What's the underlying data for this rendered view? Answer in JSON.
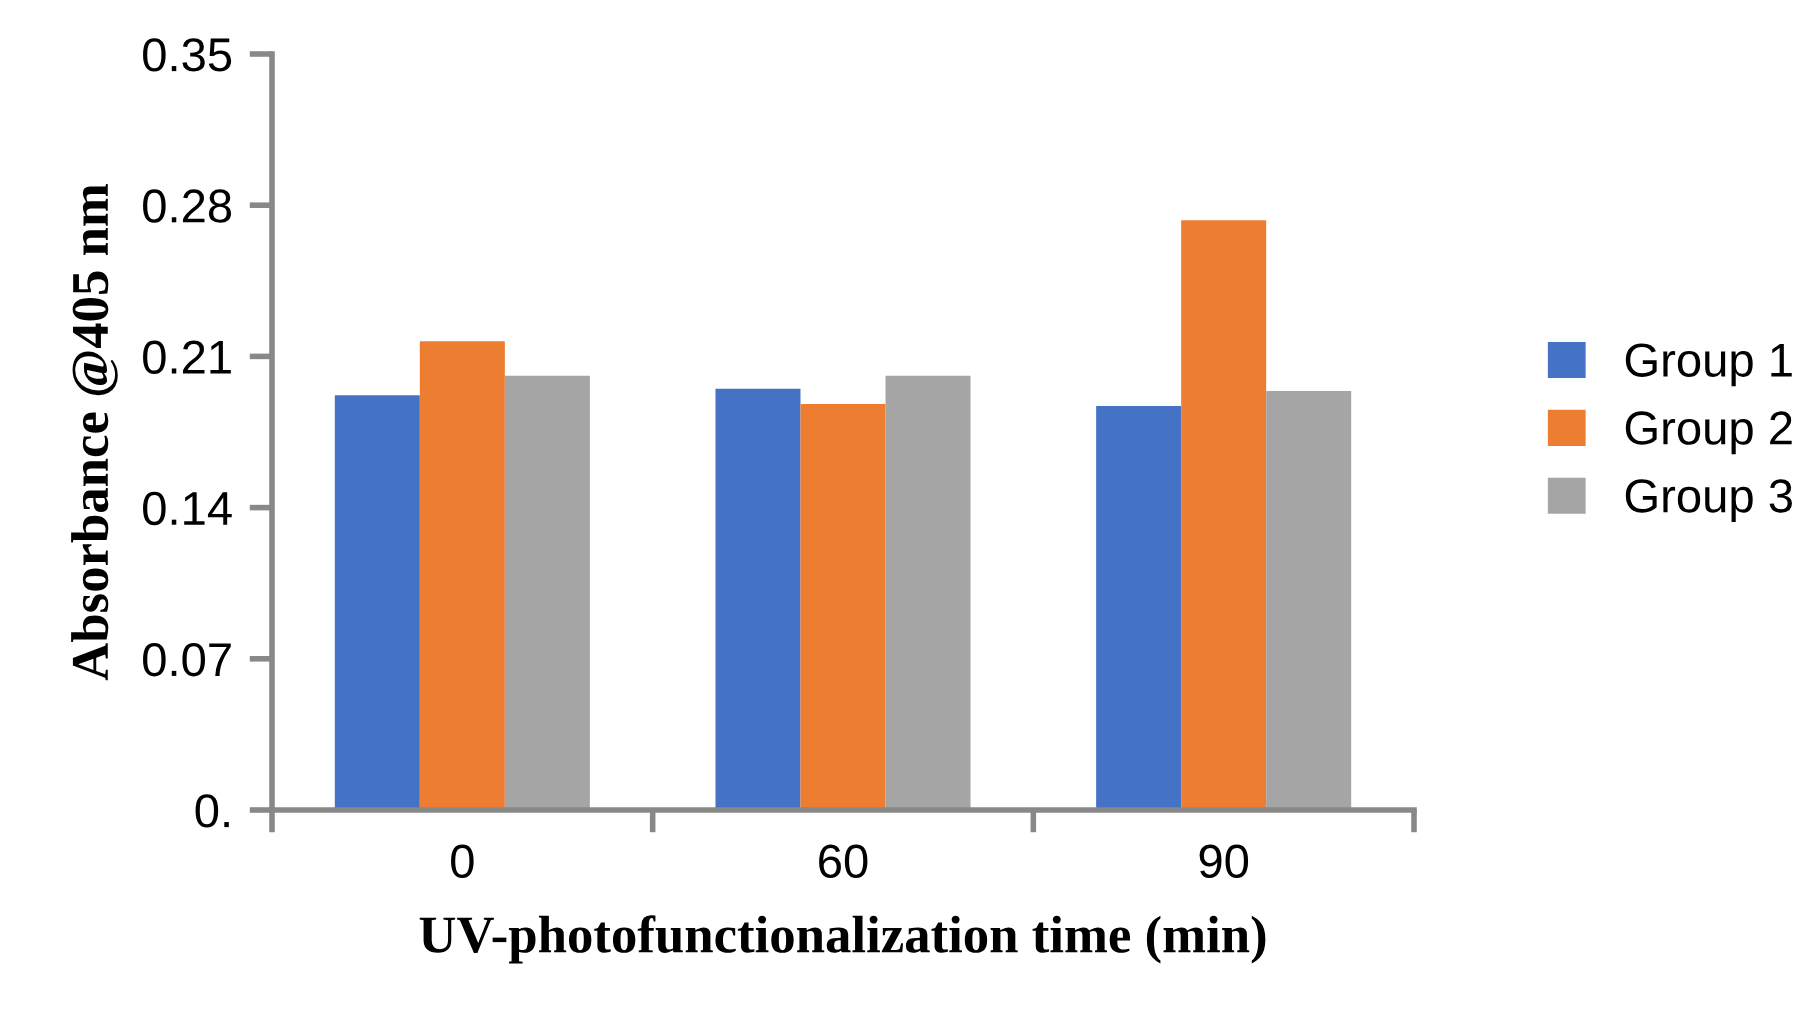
{
  "chart_data": {
    "type": "bar",
    "xlabel": "UV-photofunctionalization time (min)",
    "ylabel": "Absorbance @405 nm",
    "categories": [
      "0",
      "60",
      "90"
    ],
    "series": [
      {
        "name": "Group 1",
        "color": "#4472c4",
        "values": [
          0.192,
          0.195,
          0.187
        ]
      },
      {
        "name": "Group 2",
        "color": "#ed7d31",
        "values": [
          0.217,
          0.188,
          0.273
        ]
      },
      {
        "name": "Group 3",
        "color": "#a5a5a5",
        "values": [
          0.201,
          0.201,
          0.194
        ]
      }
    ],
    "ylim": [
      0,
      0.35
    ],
    "yticks": [
      {
        "value": 0,
        "label": "0."
      },
      0.07,
      0.14,
      0.21,
      0.28,
      0.35
    ],
    "grid": false,
    "legend": "right"
  }
}
